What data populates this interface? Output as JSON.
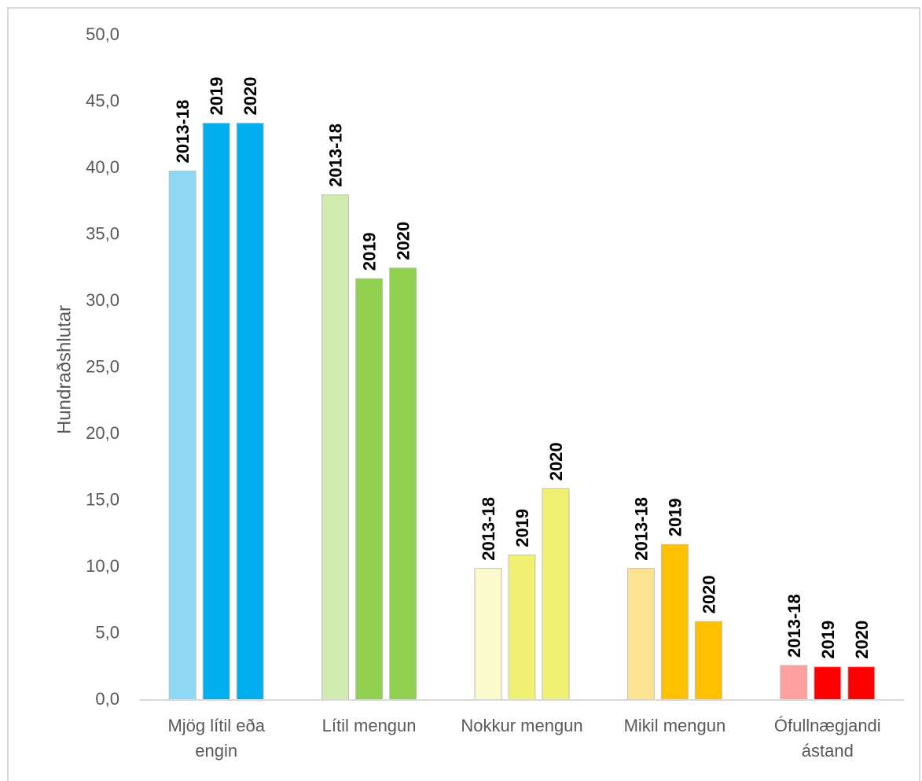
{
  "chart_data": {
    "type": "bar",
    "title": "",
    "ylabel": "Hundraðshlutar",
    "xlabel": "",
    "ylim": [
      0,
      50
    ],
    "ytick_labels": [
      "0,0",
      "5,0",
      "10,0",
      "15,0",
      "20,0",
      "25,0",
      "30,0",
      "35,0",
      "40,0",
      "45,0",
      "50,0"
    ],
    "grid": false,
    "legend": "none",
    "categories": [
      [
        "Mjög lítil eða",
        "engin"
      ],
      [
        "Lítil mengun"
      ],
      [
        "Nokkur mengun"
      ],
      [
        "Mikil mengun"
      ],
      [
        "Ófullnægjandi",
        "ástand"
      ]
    ],
    "series": [
      {
        "name": "2013-18",
        "values": [
          39.8,
          38.0,
          9.9,
          9.9,
          2.6
        ]
      },
      {
        "name": "2019",
        "values": [
          43.4,
          31.7,
          10.9,
          11.7,
          2.5
        ]
      },
      {
        "name": "2020",
        "values": [
          43.4,
          32.5,
          15.9,
          5.9,
          2.5
        ]
      }
    ],
    "colors": [
      [
        "#8fd9f6",
        "#00aeef",
        "#00aeef"
      ],
      [
        "#d1eaae",
        "#92d050",
        "#92d050"
      ],
      [
        "#fafacc",
        "#f0f073",
        "#f0f073"
      ],
      [
        "#fde38f",
        "#ffc000",
        "#ffc000"
      ],
      [
        "#ff9f9f",
        "#ff0000",
        "#ff0000"
      ]
    ]
  }
}
